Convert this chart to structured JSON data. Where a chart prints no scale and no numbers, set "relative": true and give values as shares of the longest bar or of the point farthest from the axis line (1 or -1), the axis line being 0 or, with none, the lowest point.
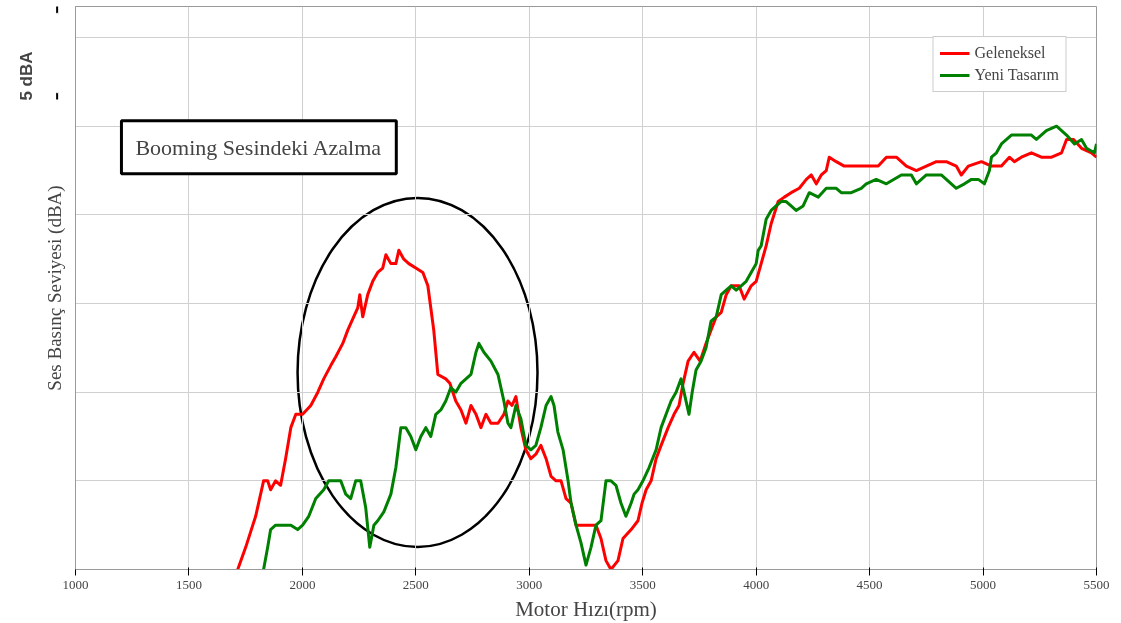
{
  "chart_data": {
    "type": "line",
    "relative": true,
    "xlabel": "Motor Hızı(rpm)",
    "ylabel": "Ses Basınç Seviyesi (dBA)",
    "xlim": [
      1000,
      5500
    ],
    "xticks": [
      1000,
      1500,
      2000,
      2500,
      3000,
      3500,
      4000,
      4500,
      5000,
      5500
    ],
    "grid": true,
    "legend": "top right",
    "marker": "none",
    "line_style": "solid",
    "annotations": [
      "Booming Sesindeki Azalma",
      "5 dBA"
    ],
    "series": [
      {
        "name": "Geleneksel",
        "color": "#ff0000",
        "x": [
          1715,
          1750,
          1794,
          1829,
          1847,
          1860,
          1882,
          1904,
          1926,
          1949,
          1971,
          2001,
          2037,
          2068,
          2094,
          2125,
          2147,
          2178,
          2200,
          2226,
          2244,
          2253,
          2266,
          2288,
          2310,
          2332,
          2354,
          2368,
          2390,
          2412,
          2425,
          2447,
          2469,
          2500,
          2531,
          2553,
          2566,
          2579,
          2597,
          2632,
          2650,
          2676,
          2699,
          2721,
          2743,
          2765,
          2787,
          2809,
          2831,
          2862,
          2888,
          2906,
          2924,
          2941,
          2963,
          2985,
          3007,
          3029,
          3051,
          3074,
          3096,
          3118,
          3140,
          3162,
          3184,
          3206,
          3250,
          3263,
          3294,
          3316,
          3338,
          3360,
          3391,
          3413,
          3449,
          3479,
          3497,
          3515,
          3537,
          3559,
          3581,
          3612,
          3638,
          3660,
          3678,
          3700,
          3726,
          3753,
          3779,
          3801,
          3824,
          3846,
          3868,
          3890,
          3925,
          3947,
          3978,
          4000,
          4022,
          4044,
          4066,
          4097,
          4124,
          4154,
          4190,
          4221,
          4243,
          4265,
          4287,
          4309,
          4322,
          4353,
          4388,
          4441,
          4494,
          4538,
          4574,
          4618,
          4662,
          4706,
          4750,
          4794,
          4838,
          4882,
          4904,
          4935,
          4993,
          5037,
          5081,
          5116,
          5138,
          5169,
          5213,
          5257,
          5302,
          5346,
          5368,
          5399,
          5434,
          5478,
          5500
        ],
        "values": [
          0,
          0.05,
          0.12,
          0.2,
          0.2,
          0.18,
          0.2,
          0.19,
          0.25,
          0.32,
          0.35,
          0.35,
          0.37,
          0.4,
          0.43,
          0.46,
          0.48,
          0.51,
          0.54,
          0.57,
          0.59,
          0.62,
          0.57,
          0.62,
          0.65,
          0.67,
          0.68,
          0.71,
          0.69,
          0.69,
          0.72,
          0.7,
          0.69,
          0.68,
          0.67,
          0.64,
          0.59,
          0.54,
          0.44,
          0.43,
          0.42,
          0.38,
          0.36,
          0.33,
          0.37,
          0.35,
          0.32,
          0.35,
          0.33,
          0.33,
          0.35,
          0.38,
          0.37,
          0.39,
          0.32,
          0.27,
          0.25,
          0.26,
          0.28,
          0.25,
          0.21,
          0.2,
          0.2,
          0.16,
          0.15,
          0.1,
          0.1,
          0.1,
          0.1,
          0.07,
          0.02,
          0,
          0.02,
          0.07,
          0.09,
          0.11,
          0.15,
          0.18,
          0.2,
          0.25,
          0.28,
          0.32,
          0.35,
          0.37,
          0.42,
          0.47,
          0.49,
          0.47,
          0.51,
          0.54,
          0.57,
          0.58,
          0.62,
          0.64,
          0.64,
          0.61,
          0.64,
          0.65,
          0.69,
          0.73,
          0.78,
          0.83,
          0.84,
          0.85,
          0.86,
          0.88,
          0.89,
          0.87,
          0.89,
          0.9,
          0.93,
          0.92,
          0.91,
          0.91,
          0.91,
          0.91,
          0.93,
          0.93,
          0.91,
          0.9,
          0.91,
          0.92,
          0.92,
          0.91,
          0.89,
          0.91,
          0.92,
          0.91,
          0.91,
          0.93,
          0.92,
          0.93,
          0.94,
          0.93,
          0.93,
          0.94,
          0.97,
          0.97,
          0.95,
          0.94,
          0.93
        ]
      },
      {
        "name": "Yeni Tasarım",
        "color": "#008000",
        "x": [
          1829,
          1847,
          1860,
          1882,
          1913,
          1949,
          1979,
          2001,
          2028,
          2059,
          2094,
          2116,
          2147,
          2169,
          2191,
          2213,
          2235,
          2257,
          2279,
          2297,
          2315,
          2332,
          2359,
          2390,
          2412,
          2434,
          2456,
          2478,
          2500,
          2522,
          2544,
          2566,
          2588,
          2610,
          2632,
          2654,
          2676,
          2699,
          2721,
          2743,
          2765,
          2778,
          2800,
          2831,
          2862,
          2888,
          2906,
          2919,
          2941,
          2963,
          2985,
          3007,
          3029,
          3051,
          3074,
          3096,
          3109,
          3126,
          3149,
          3171,
          3184,
          3206,
          3228,
          3250,
          3272,
          3294,
          3316,
          3338,
          3360,
          3382,
          3404,
          3426,
          3449,
          3462,
          3479,
          3501,
          3528,
          3559,
          3581,
          3603,
          3625,
          3647,
          3669,
          3682,
          3704,
          3718,
          3735,
          3757,
          3779,
          3801,
          3824,
          3846,
          3868,
          3890,
          3912,
          3934,
          3956,
          3978,
          4000,
          4009,
          4022,
          4044,
          4066,
          4088,
          4110,
          4132,
          4154,
          4176,
          4207,
          4234,
          4274,
          4309,
          4331,
          4353,
          4375,
          4419,
          4463,
          4485,
          4529,
          4574,
          4640,
          4684,
          4706,
          4750,
          4816,
          4860,
          4882,
          4918,
          4949,
          4979,
          5006,
          5028,
          5037,
          5059,
          5081,
          5125,
          5169,
          5213,
          5235,
          5279,
          5324,
          5368,
          5403,
          5434,
          5456,
          5491,
          5500
        ],
        "values": [
          0,
          0.05,
          0.09,
          0.1,
          0.1,
          0.1,
          0.09,
          0.1,
          0.12,
          0.16,
          0.18,
          0.2,
          0.2,
          0.2,
          0.17,
          0.16,
          0.2,
          0.2,
          0.14,
          0.05,
          0.1,
          0.11,
          0.13,
          0.17,
          0.23,
          0.32,
          0.32,
          0.3,
          0.27,
          0.3,
          0.32,
          0.3,
          0.35,
          0.36,
          0.38,
          0.41,
          0.4,
          0.42,
          0.43,
          0.44,
          0.49,
          0.51,
          0.49,
          0.47,
          0.44,
          0.38,
          0.33,
          0.32,
          0.37,
          0.34,
          0.28,
          0.27,
          0.28,
          0.32,
          0.37,
          0.39,
          0.37,
          0.31,
          0.27,
          0.2,
          0.15,
          0.1,
          0.06,
          0.01,
          0.05,
          0.1,
          0.11,
          0.2,
          0.2,
          0.19,
          0.15,
          0.12,
          0.15,
          0.17,
          0.18,
          0.2,
          0.23,
          0.27,
          0.32,
          0.35,
          0.38,
          0.4,
          0.43,
          0.4,
          0.35,
          0.4,
          0.45,
          0.47,
          0.5,
          0.56,
          0.57,
          0.62,
          0.63,
          0.64,
          0.63,
          0.64,
          0.65,
          0.67,
          0.69,
          0.72,
          0.73,
          0.79,
          0.81,
          0.82,
          0.83,
          0.83,
          0.82,
          0.81,
          0.82,
          0.85,
          0.84,
          0.86,
          0.86,
          0.86,
          0.85,
          0.85,
          0.86,
          0.87,
          0.88,
          0.87,
          0.89,
          0.89,
          0.87,
          0.89,
          0.89,
          0.87,
          0.86,
          0.87,
          0.88,
          0.88,
          0.87,
          0.9,
          0.93,
          0.94,
          0.96,
          0.98,
          0.98,
          0.98,
          0.97,
          0.99,
          1.0,
          0.98,
          0.96,
          0.97,
          0.95,
          0.94,
          0.96
        ]
      }
    ]
  }
}
